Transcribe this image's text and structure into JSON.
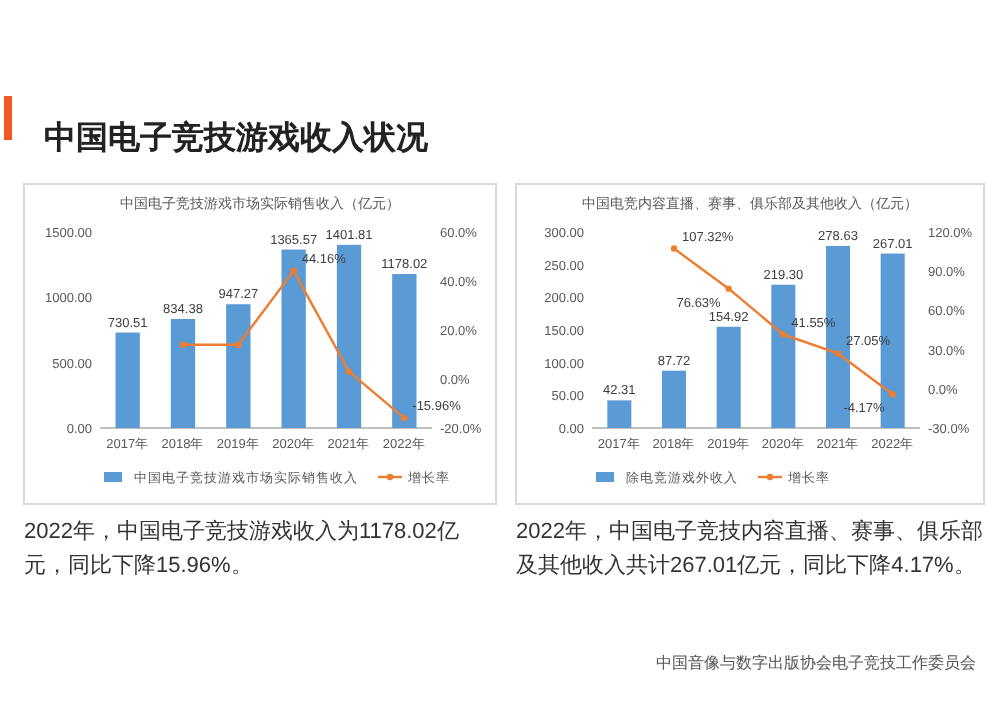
{
  "chart_data": [
    {
      "type": "other",
      "title": "中国电子竞技游戏收入状况",
      "annotations": [
        "中国音像与数字出版协会电子竞技工作委员会"
      ]
    },
    {
      "type": "bar",
      "title": "中国电子竞技游戏市场实际销售收入（亿元）",
      "categories": [
        "2017年",
        "2018年",
        "2019年",
        "2020年",
        "2021年",
        "2022年"
      ],
      "series": [
        {
          "name": "中国电子竞技游戏市场实际销售收入",
          "type": "bar",
          "color": "#5b9bd5",
          "values": [
            730.51,
            834.38,
            947.27,
            1365.57,
            1401.81,
            1178.02
          ],
          "value_labels": [
            "730.51",
            "834.38",
            "947.27",
            "1365.57",
            "1401.81",
            "1178.02"
          ]
        },
        {
          "name": "增长率",
          "type": "line",
          "axis": "y2",
          "color": "#ed7d31",
          "values": [
            null,
            14,
            14,
            44.16,
            3,
            -15.96
          ],
          "value_labels": [
            null,
            null,
            null,
            "44.16%",
            null,
            "-15.96%"
          ]
        }
      ],
      "marker": "circle",
      "ylim": [
        0,
        1500
      ],
      "yticks": [
        {
          "value": 0,
          "label": "0.00"
        },
        {
          "value": 500,
          "label": "500.00"
        },
        {
          "value": 1000,
          "label": "1000.00"
        },
        {
          "value": 1500,
          "label": "1500.00"
        }
      ],
      "y2lim": [
        -20,
        60
      ],
      "y2ticks": [
        {
          "value": -20,
          "label": "-20.0%"
        },
        {
          "value": 0,
          "label": "0.0%"
        },
        {
          "value": 20,
          "label": "20.0%"
        },
        {
          "value": 40,
          "label": "40.0%"
        },
        {
          "value": 60,
          "label": "60.0%"
        }
      ],
      "legend": "bottom",
      "annotations": [
        "2022年，中国电子竞技游戏收入为1178.02亿元，同比下降15.96%。"
      ]
    },
    {
      "type": "bar",
      "title": "中国电竞内容直播、赛事、俱乐部及其他收入（亿元）",
      "categories": [
        "2017年",
        "2018年",
        "2019年",
        "2020年",
        "2021年",
        "2022年"
      ],
      "series": [
        {
          "name": "除电竞游戏外收入",
          "type": "bar",
          "color": "#5b9bd5",
          "values": [
            42.31,
            87.72,
            154.92,
            219.3,
            278.63,
            267.01
          ],
          "value_labels": [
            "42.31",
            "87.72",
            "154.92",
            "219.30",
            "278.63",
            "267.01"
          ]
        },
        {
          "name": "增长率",
          "type": "line",
          "axis": "y2",
          "color": "#ed7d31",
          "values": [
            null,
            107.32,
            76.63,
            41.55,
            27.05,
            -4.17
          ],
          "value_labels": [
            null,
            "107.32%",
            "76.63%",
            "41.55%",
            "27.05%",
            "-4.17%"
          ]
        }
      ],
      "marker": "circle",
      "ylim": [
        0,
        300
      ],
      "yticks": [
        {
          "value": 0,
          "label": "0.00"
        },
        {
          "value": 50,
          "label": "50.00"
        },
        {
          "value": 100,
          "label": "100.00"
        },
        {
          "value": 150,
          "label": "150.00"
        },
        {
          "value": 200,
          "label": "200.00"
        },
        {
          "value": 250,
          "label": "250.00"
        },
        {
          "value": 300,
          "label": "300.00"
        }
      ],
      "y2lim": [
        -30,
        120
      ],
      "y2ticks": [
        {
          "value": -30,
          "label": "-30.0%"
        },
        {
          "value": 0,
          "label": "0.0%"
        },
        {
          "value": 30,
          "label": "30.0%"
        },
        {
          "value": 60,
          "label": "60.0%"
        },
        {
          "value": 90,
          "label": "90.0%"
        },
        {
          "value": 120,
          "label": "120.0%"
        }
      ],
      "legend": "bottom",
      "annotations": [
        "2022年，中国电子竞技内容直播、赛事、俱乐部及其他收入共计267.01亿元，同比下降4.17%。"
      ]
    }
  ]
}
